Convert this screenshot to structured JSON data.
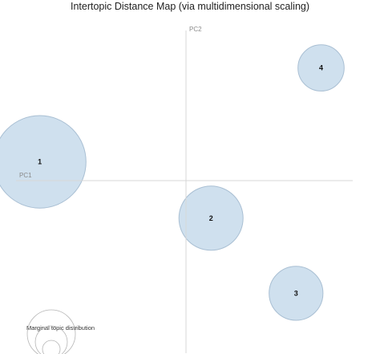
{
  "chart_data": {
    "type": "scatter",
    "title": "Intertopic Distance Map (via multidimensional scaling)",
    "xlabel": "PC1",
    "ylabel": "PC2",
    "xlim": [
      -1,
      1
    ],
    "ylim": [
      -1,
      1
    ],
    "grid": false,
    "marker": "bubble",
    "colors": {
      "fill": "#c5d9ea",
      "stroke": "#a9bfd3",
      "axis": "#d7d7d7"
    },
    "topics": [
      {
        "label": "1",
        "x": -0.86,
        "y": 0.12,
        "size": 0.36
      },
      {
        "label": "2",
        "x": 0.15,
        "y": -0.24,
        "size": 0.25
      },
      {
        "label": "3",
        "x": 0.66,
        "y": -0.72,
        "size": 0.21
      },
      {
        "label": "4",
        "x": 0.81,
        "y": 0.72,
        "size": 0.18
      }
    ],
    "legend": {
      "title": "Marginal topic distribution",
      "placement": "bottom-left"
    }
  }
}
